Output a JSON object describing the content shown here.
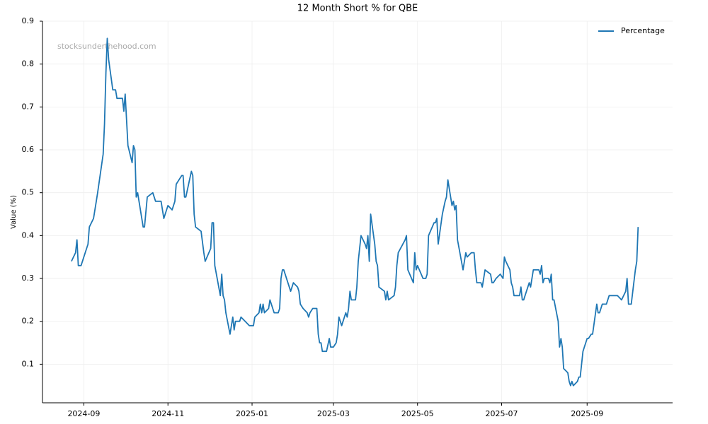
{
  "chart_data": {
    "type": "line",
    "title": "12 Month Short % for QBE",
    "y_label": "Value (%)",
    "annotation": "stocksunderthehood.com",
    "legend": "upper right",
    "grid": true,
    "xlim": [
      "2024-08-02",
      "2025-11-02"
    ],
    "xticks": [
      "2024-09",
      "2024-11",
      "2025-01",
      "2025-03",
      "2025-05",
      "2025-07",
      "2025-09"
    ],
    "ylim": [
      0.01,
      0.9
    ],
    "yticks": [
      0.1,
      0.2,
      0.3,
      0.4,
      0.5,
      0.6,
      0.7,
      0.8,
      0.9
    ],
    "x": [
      "2024-08-23",
      "2024-08-26",
      "2024-08-27",
      "2024-08-28",
      "2024-08-30",
      "2024-09-01",
      "2024-09-03",
      "2024-09-04",
      "2024-09-05",
      "2024-09-08",
      "2024-09-10",
      "2024-09-11",
      "2024-09-15",
      "2024-09-16",
      "2024-09-17",
      "2024-09-18",
      "2024-09-19",
      "2024-09-22",
      "2024-09-24",
      "2024-09-25",
      "2024-09-29",
      "2024-09-30",
      "2024-10-01",
      "2024-10-03",
      "2024-10-06",
      "2024-10-07",
      "2024-10-08",
      "2024-10-09",
      "2024-10-10",
      "2024-10-14",
      "2024-10-15",
      "2024-10-17",
      "2024-10-21",
      "2024-10-23",
      "2024-10-27",
      "2024-10-29",
      "2024-11-01",
      "2024-11-04",
      "2024-11-06",
      "2024-11-07",
      "2024-11-11",
      "2024-11-12",
      "2024-11-13",
      "2024-11-14",
      "2024-11-18",
      "2024-11-19",
      "2024-11-20",
      "2024-11-21",
      "2024-11-25",
      "2024-11-27",
      "2024-11-28",
      "2024-12-02",
      "2024-12-03",
      "2024-12-04",
      "2024-12-05",
      "2024-12-09",
      "2024-12-10",
      "2024-12-11",
      "2024-12-12",
      "2024-12-13",
      "2024-12-16",
      "2024-12-18",
      "2024-12-19",
      "2024-12-20",
      "2024-12-23",
      "2024-12-24",
      "2024-12-27",
      "2024-12-30",
      "2025-01-02",
      "2025-01-03",
      "2025-01-06",
      "2025-01-07",
      "2025-01-08",
      "2025-01-09",
      "2025-01-10",
      "2025-01-13",
      "2025-01-14",
      "2025-01-17",
      "2025-01-20",
      "2025-01-21",
      "2025-01-22",
      "2025-01-23",
      "2025-01-24",
      "2025-01-28",
      "2025-01-29",
      "2025-01-31",
      "2025-02-03",
      "2025-02-04",
      "2025-02-05",
      "2025-02-07",
      "2025-02-10",
      "2025-02-11",
      "2025-02-12",
      "2025-02-14",
      "2025-02-17",
      "2025-02-18",
      "2025-02-19",
      "2025-02-20",
      "2025-02-21",
      "2025-02-24",
      "2025-02-26",
      "2025-02-27",
      "2025-03-01",
      "2025-03-03",
      "2025-03-04",
      "2025-03-05",
      "2025-03-07",
      "2025-03-10",
      "2025-03-11",
      "2025-03-12",
      "2025-03-13",
      "2025-03-14",
      "2025-03-17",
      "2025-03-18",
      "2025-03-19",
      "2025-03-21",
      "2025-03-24",
      "2025-03-25",
      "2025-03-26",
      "2025-03-27",
      "2025-03-28",
      "2025-03-31",
      "2025-04-01",
      "2025-04-02",
      "2025-04-03",
      "2025-04-07",
      "2025-04-08",
      "2025-04-09",
      "2025-04-10",
      "2025-04-14",
      "2025-04-15",
      "2025-04-16",
      "2025-04-17",
      "2025-04-22",
      "2025-04-23",
      "2025-04-24",
      "2025-04-28",
      "2025-04-29",
      "2025-04-30",
      "2025-05-01",
      "2025-05-05",
      "2025-05-07",
      "2025-05-08",
      "2025-05-09",
      "2025-05-13",
      "2025-05-14",
      "2025-05-15",
      "2025-05-16",
      "2025-05-19",
      "2025-05-21",
      "2025-05-22",
      "2025-05-23",
      "2025-05-26",
      "2025-05-27",
      "2025-05-28",
      "2025-05-29",
      "2025-05-30",
      "2025-06-03",
      "2025-06-05",
      "2025-06-06",
      "2025-06-09",
      "2025-06-11",
      "2025-06-12",
      "2025-06-13",
      "2025-06-16",
      "2025-06-17",
      "2025-06-19",
      "2025-06-23",
      "2025-06-24",
      "2025-06-25",
      "2025-06-27",
      "2025-06-30",
      "2025-07-02",
      "2025-07-03",
      "2025-07-04",
      "2025-07-07",
      "2025-07-08",
      "2025-07-09",
      "2025-07-10",
      "2025-07-14",
      "2025-07-15",
      "2025-07-16",
      "2025-07-17",
      "2025-07-18",
      "2025-07-21",
      "2025-07-22",
      "2025-07-24",
      "2025-07-28",
      "2025-07-29",
      "2025-07-30",
      "2025-07-31",
      "2025-08-01",
      "2025-08-04",
      "2025-08-05",
      "2025-08-06",
      "2025-08-07",
      "2025-08-08",
      "2025-08-11",
      "2025-08-12",
      "2025-08-13",
      "2025-08-14",
      "2025-08-15",
      "2025-08-18",
      "2025-08-19",
      "2025-08-20",
      "2025-08-21",
      "2025-08-22",
      "2025-08-25",
      "2025-08-26",
      "2025-08-27",
      "2025-08-29",
      "2025-09-01",
      "2025-09-02",
      "2025-09-04",
      "2025-09-05",
      "2025-09-08",
      "2025-09-09",
      "2025-09-10",
      "2025-09-12",
      "2025-09-15",
      "2025-09-17",
      "2025-09-23",
      "2025-09-26",
      "2025-09-29",
      "2025-09-30",
      "2025-10-01",
      "2025-10-03",
      "2025-10-06",
      "2025-10-07",
      "2025-10-08"
    ],
    "series": [
      {
        "name": "Percentage",
        "color": "#1f77b4",
        "values": [
          0.34,
          0.36,
          0.39,
          0.33,
          0.33,
          0.35,
          0.37,
          0.38,
          0.42,
          0.44,
          0.48,
          0.5,
          0.59,
          0.66,
          0.78,
          0.86,
          0.81,
          0.74,
          0.74,
          0.72,
          0.72,
          0.69,
          0.73,
          0.61,
          0.57,
          0.61,
          0.6,
          0.49,
          0.5,
          0.42,
          0.42,
          0.49,
          0.5,
          0.48,
          0.48,
          0.44,
          0.47,
          0.46,
          0.48,
          0.52,
          0.54,
          0.54,
          0.49,
          0.49,
          0.55,
          0.54,
          0.45,
          0.42,
          0.41,
          0.36,
          0.34,
          0.37,
          0.43,
          0.43,
          0.33,
          0.26,
          0.31,
          0.26,
          0.25,
          0.22,
          0.17,
          0.21,
          0.18,
          0.2,
          0.2,
          0.21,
          0.2,
          0.19,
          0.19,
          0.21,
          0.22,
          0.24,
          0.22,
          0.24,
          0.22,
          0.23,
          0.25,
          0.22,
          0.22,
          0.23,
          0.3,
          0.32,
          0.32,
          0.28,
          0.27,
          0.29,
          0.28,
          0.27,
          0.24,
          0.23,
          0.22,
          0.21,
          0.22,
          0.23,
          0.23,
          0.17,
          0.15,
          0.15,
          0.13,
          0.13,
          0.16,
          0.14,
          0.14,
          0.15,
          0.17,
          0.21,
          0.19,
          0.22,
          0.21,
          0.23,
          0.27,
          0.25,
          0.25,
          0.28,
          0.34,
          0.4,
          0.38,
          0.37,
          0.4,
          0.34,
          0.45,
          0.38,
          0.34,
          0.33,
          0.28,
          0.27,
          0.25,
          0.27,
          0.25,
          0.26,
          0.28,
          0.33,
          0.36,
          0.39,
          0.4,
          0.32,
          0.29,
          0.36,
          0.32,
          0.33,
          0.3,
          0.3,
          0.31,
          0.4,
          0.43,
          0.43,
          0.44,
          0.38,
          0.45,
          0.48,
          0.49,
          0.53,
          0.47,
          0.48,
          0.46,
          0.47,
          0.39,
          0.32,
          0.36,
          0.35,
          0.36,
          0.36,
          0.32,
          0.29,
          0.29,
          0.28,
          0.32,
          0.31,
          0.29,
          0.29,
          0.3,
          0.31,
          0.3,
          0.35,
          0.34,
          0.32,
          0.29,
          0.28,
          0.26,
          0.26,
          0.28,
          0.25,
          0.25,
          0.26,
          0.29,
          0.28,
          0.32,
          0.32,
          0.31,
          0.33,
          0.29,
          0.3,
          0.3,
          0.29,
          0.31,
          0.25,
          0.25,
          0.2,
          0.14,
          0.16,
          0.14,
          0.09,
          0.08,
          0.06,
          0.05,
          0.06,
          0.05,
          0.06,
          0.07,
          0.07,
          0.13,
          0.16,
          0.16,
          0.17,
          0.17,
          0.24,
          0.22,
          0.22,
          0.24,
          0.24,
          0.26,
          0.26,
          0.25,
          0.27,
          0.3,
          0.24,
          0.24,
          0.32,
          0.34,
          0.42
        ]
      }
    ]
  }
}
